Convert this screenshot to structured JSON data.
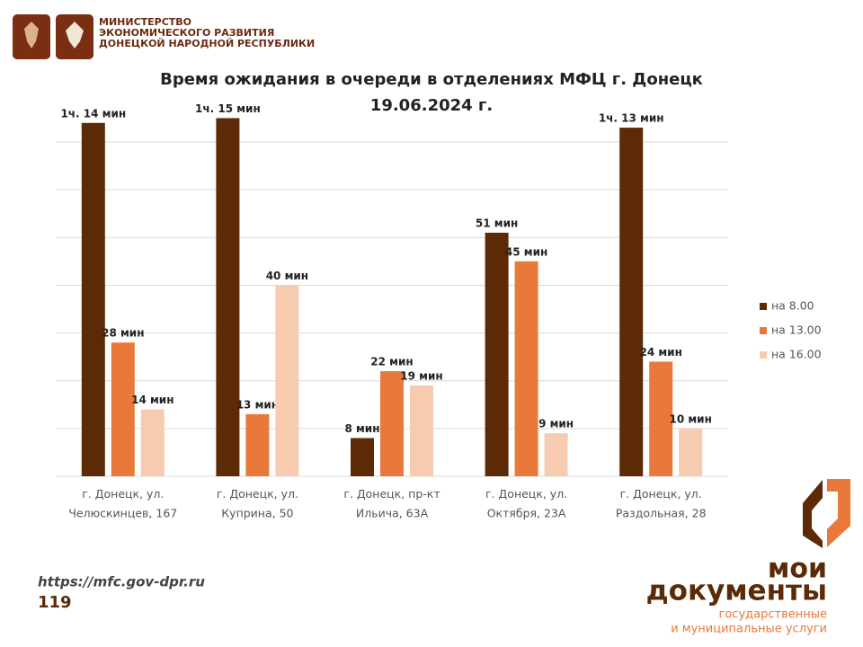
{
  "header": {
    "ministry": [
      "МИНИСТЕРСТВО",
      "ЭКОНОМИЧЕСКОГО РАЗВИТИЯ",
      "ДОНЕЦКОЙ НАРОДНОЙ РЕСПУБЛИКИ"
    ]
  },
  "footer": {
    "url": "https://mfc.gov-dpr.ru",
    "number": "119",
    "logo_top": "мои",
    "logo_main": "документы",
    "logo_sub": [
      "государственные",
      "и муниципальные услуги"
    ]
  },
  "chart_data": {
    "type": "bar",
    "title": [
      "Время ожидания в очереди в отделениях МФЦ г. Донецк",
      "19.06.2024 г."
    ],
    "categories": [
      "г. Донецк, ул.\nЧелюскинцев, 167",
      "г. Донецк, ул.\nКуприна, 50",
      "г. Донецк, пр-кт\nИльича, 63А",
      "г. Донецк, ул.\nОктября, 23А",
      "г. Донецк, ул.\nРаздольная, 28"
    ],
    "series": [
      {
        "name": "на 8.00",
        "color": "#5c2a06",
        "values": [
          74,
          75,
          8,
          51,
          73
        ],
        "value_labels": [
          "1ч. 14 мин",
          "1ч. 15 мин",
          "8 мин",
          "51 мин",
          "1ч. 13 мин"
        ]
      },
      {
        "name": "на 13.00",
        "color": "#e8793a",
        "values": [
          28,
          13,
          22,
          45,
          24
        ],
        "value_labels": [
          "28 мин",
          "13 мин",
          "22 мин",
          "45 мин",
          "24 мин"
        ]
      },
      {
        "name": "на 16.00",
        "color": "#f7cbb0",
        "values": [
          14,
          40,
          19,
          9,
          10
        ],
        "value_labels": [
          "14 мин",
          "40 мин",
          "19 мин",
          "9 мин",
          "10 мин"
        ]
      }
    ],
    "ylim": [
      0,
      76
    ],
    "yticks": [
      0,
      10,
      20,
      30,
      40,
      50,
      60,
      70
    ],
    "grid": true,
    "legend": "right"
  }
}
